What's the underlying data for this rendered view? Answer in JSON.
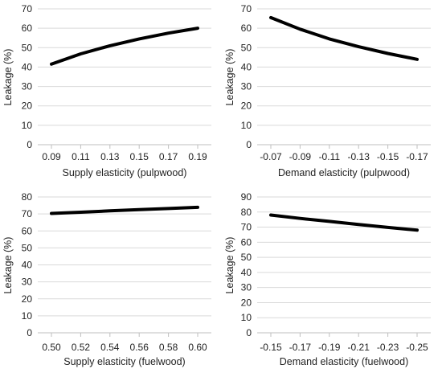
{
  "chart_data": [
    {
      "type": "line",
      "xlabel": "Supply elasticity (pulpwood)",
      "ylabel": "Leakage (%)",
      "x_ticks": [
        "0.09",
        "0.11",
        "0.13",
        "0.15",
        "0.17",
        "0.19"
      ],
      "y_ticks": [
        "0",
        "10",
        "20",
        "30",
        "40",
        "50",
        "60",
        "70"
      ],
      "xlim": [
        0.09,
        0.19
      ],
      "ylim": [
        0,
        70
      ],
      "x_reversed": false,
      "grid": "horizontal",
      "series": [
        {
          "color": "#000000",
          "x": [
            0.09,
            0.11,
            0.13,
            0.15,
            0.17,
            0.19
          ],
          "y": [
            41.5,
            46.8,
            51.0,
            54.5,
            57.5,
            60.0
          ]
        }
      ]
    },
    {
      "type": "line",
      "xlabel": "Demand elasticity (pulpwood)",
      "ylabel": "Leakage (%)",
      "x_ticks": [
        "-0.07",
        "-0.09",
        "-0.11",
        "-0.13",
        "-0.15",
        "-0.17"
      ],
      "y_ticks": [
        "0",
        "10",
        "20",
        "30",
        "40",
        "50",
        "60",
        "70"
      ],
      "xlim": [
        -0.07,
        -0.17
      ],
      "ylim": [
        0,
        70
      ],
      "x_reversed": true,
      "grid": "horizontal",
      "series": [
        {
          "color": "#000000",
          "x": [
            -0.07,
            -0.09,
            -0.11,
            -0.13,
            -0.15,
            -0.17
          ],
          "y": [
            65.5,
            59.5,
            54.5,
            50.5,
            47.0,
            44.0
          ]
        }
      ]
    },
    {
      "type": "line",
      "xlabel": "Supply elasticity (fuelwood)",
      "ylabel": "Leakage (%)",
      "x_ticks": [
        "0.50",
        "0.52",
        "0.54",
        "0.56",
        "0.58",
        "0.60"
      ],
      "y_ticks": [
        "0",
        "10",
        "20",
        "30",
        "40",
        "50",
        "60",
        "70",
        "80"
      ],
      "xlim": [
        0.5,
        0.6
      ],
      "ylim": [
        0,
        80
      ],
      "x_reversed": false,
      "grid": "horizontal",
      "series": [
        {
          "color": "#000000",
          "x": [
            0.5,
            0.52,
            0.54,
            0.56,
            0.58,
            0.6
          ],
          "y": [
            70.3,
            71.0,
            71.8,
            72.5,
            73.2,
            73.9
          ]
        }
      ]
    },
    {
      "type": "line",
      "xlabel": "Demand elasticity (fuelwood)",
      "ylabel": "Leakage (%)",
      "x_ticks": [
        "-0.15",
        "-0.17",
        "-0.19",
        "-0.21",
        "-0.23",
        "-0.25"
      ],
      "y_ticks": [
        "0",
        "10",
        "20",
        "30",
        "40",
        "50",
        "60",
        "70",
        "80",
        "90"
      ],
      "xlim": [
        -0.15,
        -0.25
      ],
      "ylim": [
        0,
        90
      ],
      "x_reversed": true,
      "grid": "horizontal",
      "series": [
        {
          "color": "#000000",
          "x": [
            -0.15,
            -0.17,
            -0.19,
            -0.21,
            -0.23,
            -0.25
          ],
          "y": [
            78.0,
            75.8,
            73.8,
            71.8,
            69.8,
            68.0
          ]
        }
      ]
    }
  ]
}
